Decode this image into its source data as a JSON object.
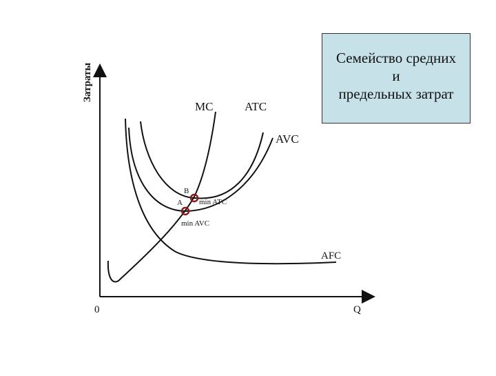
{
  "y_axis_label": "Затраты",
  "x_axis_label": "Q",
  "origin_label": "0",
  "title_lines": [
    "Семейство средних",
    "и",
    "предельных затрат"
  ],
  "curves": {
    "mc": "MC",
    "atc": "ATC",
    "avc": "AVC",
    "afc": "AFC"
  },
  "points": {
    "b": "B",
    "a": "A",
    "min_atc": "min ATC",
    "min_avc": "min AVC"
  },
  "colors": {
    "curve": "#111111",
    "marker": "#8b1a1a",
    "title_box": "#c6e2e8"
  }
}
